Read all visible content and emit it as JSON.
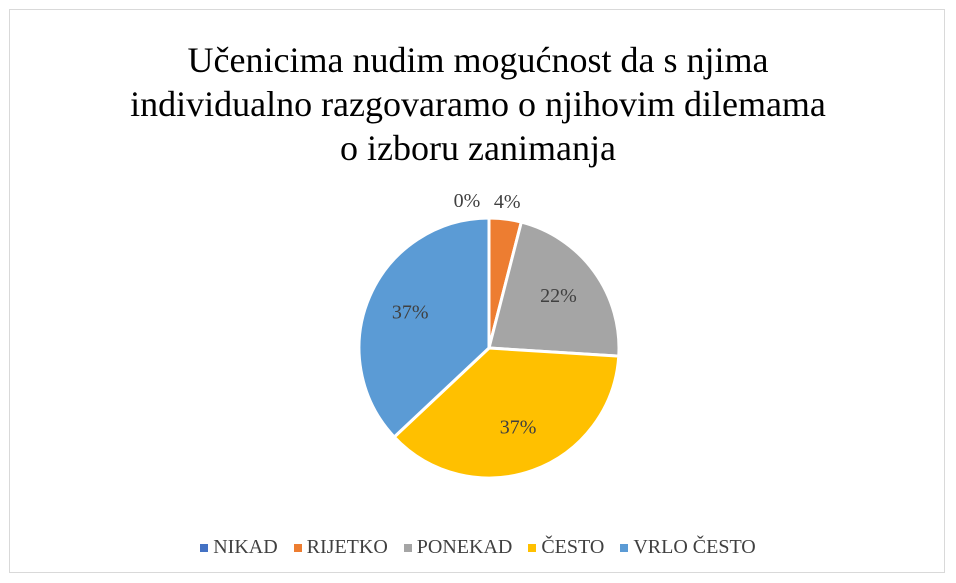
{
  "chart_data": {
    "type": "pie",
    "title": "Učenicima nudim mogućnost da s njima individualno razgovaramo o njihovim dilemama o izboru zanimanja",
    "categories": [
      "NIKAD",
      "RIJETKO",
      "PONEKAD",
      "ČESTO",
      "VRLO ČESTO"
    ],
    "values": [
      0,
      4,
      22,
      37,
      37
    ],
    "value_labels": [
      "0%",
      "4%",
      "22%",
      "37%",
      "37%"
    ],
    "colors": [
      "#4472c4",
      "#ed7d31",
      "#a5a5a5",
      "#ffc000",
      "#5b9bd5"
    ],
    "legend": "bottom"
  }
}
